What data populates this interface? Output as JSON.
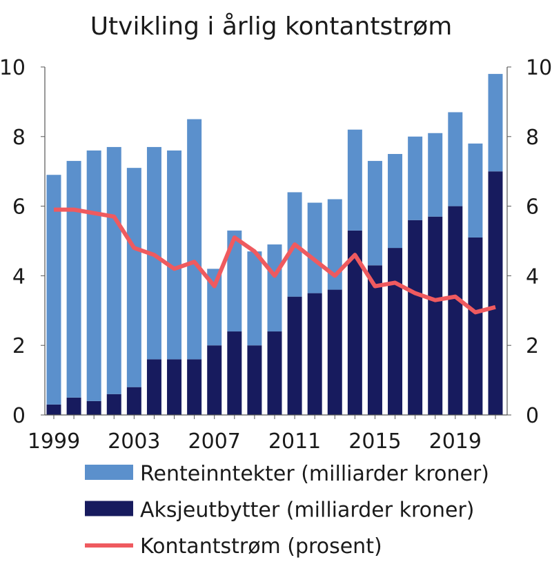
{
  "chart_data": {
    "type": "bar",
    "stacked": true,
    "title": "Utvikling i årlig kontantstrøm",
    "categories": [
      "1999",
      "2000",
      "2001",
      "2002",
      "2003",
      "2004",
      "2005",
      "2006",
      "2007",
      "2008",
      "2009",
      "2010",
      "2011",
      "2012",
      "2013",
      "2014",
      "2015",
      "2016",
      "2017",
      "2018",
      "2019",
      "2020",
      "2021"
    ],
    "x_tick_labels": [
      "1999",
      "2003",
      "2007",
      "2011",
      "2015",
      "2019"
    ],
    "y_ticks": [
      "0",
      "2",
      "4",
      "6",
      "8",
      "10"
    ],
    "ylim": [
      0,
      10
    ],
    "y2lim": [
      0,
      10
    ],
    "series": [
      {
        "name": "Aksjeutbytter (milliarder kroner)",
        "type": "bar",
        "color": "#171b5e",
        "values": [
          0.3,
          0.5,
          0.4,
          0.6,
          0.8,
          1.6,
          1.6,
          1.6,
          2.0,
          2.4,
          2.0,
          2.4,
          3.4,
          3.5,
          3.6,
          5.3,
          4.3,
          4.8,
          5.6,
          5.7,
          6.0,
          5.1,
          7.0
        ]
      },
      {
        "name": "Renteinntekter (milliarder kroner)",
        "type": "bar",
        "color": "#5b90cc",
        "values": [
          6.6,
          6.8,
          7.2,
          7.1,
          6.3,
          6.1,
          6.0,
          6.9,
          2.2,
          2.9,
          2.7,
          2.5,
          3.0,
          2.6,
          2.6,
          2.9,
          3.0,
          2.7,
          2.4,
          2.4,
          2.7,
          2.7,
          2.8
        ]
      },
      {
        "name": "Kontantstrøm (prosent)",
        "type": "line",
        "axis": "right",
        "color": "#ef5a5f",
        "values": [
          5.9,
          5.9,
          5.8,
          5.7,
          4.8,
          4.6,
          4.2,
          4.4,
          3.7,
          5.1,
          4.7,
          4.0,
          4.9,
          4.45,
          4.0,
          4.6,
          3.7,
          3.8,
          3.5,
          3.3,
          3.4,
          2.95,
          3.1
        ]
      }
    ],
    "legend": {
      "position": "bottom",
      "entries": [
        "Renteinntekter (milliarder kroner)",
        "Aksjeutbytter (milliarder kroner)",
        "Kontantstrøm (prosent)"
      ]
    },
    "grid": false
  }
}
